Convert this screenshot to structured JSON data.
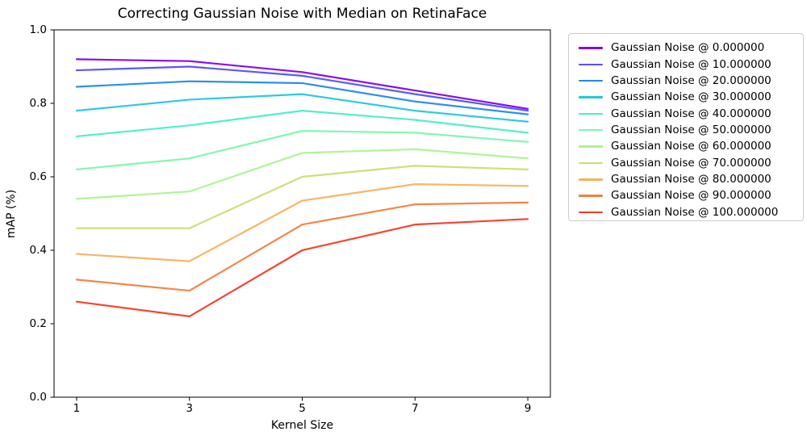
{
  "page": {
    "background": "#ffffff"
  },
  "chart_data": {
    "type": "line",
    "title": "Correcting Gaussian Noise with Median on RetinaFace",
    "xlabel": "Kernel Size",
    "ylabel": "mAP (%)",
    "x": [
      1,
      3,
      5,
      7,
      9
    ],
    "x_tick_labels": [
      "1",
      "3",
      "5",
      "7",
      "9"
    ],
    "y_ticks": [
      0.0,
      0.2,
      0.4,
      0.6,
      0.8,
      1.0
    ],
    "y_tick_labels": [
      "0.0",
      "0.2",
      "0.4",
      "0.6",
      "0.8",
      "1.0"
    ],
    "xlim": [
      0.6,
      9.4
    ],
    "ylim": [
      0,
      1
    ],
    "grid": false,
    "legend_position": "outside-right",
    "axis_color": "#000000",
    "series": [
      {
        "name": "Gaussian Noise @ 0.000000",
        "color": "#8000f8",
        "values": [
          0.92,
          0.915,
          0.885,
          0.835,
          0.785
        ]
      },
      {
        "name": "Gaussian Noise @ 10.000000",
        "color": "#5150fa",
        "values": [
          0.89,
          0.9,
          0.875,
          0.825,
          0.78
        ]
      },
      {
        "name": "Gaussian Noise @ 20.000000",
        "color": "#2089ee",
        "values": [
          0.845,
          0.86,
          0.855,
          0.805,
          0.77
        ]
      },
      {
        "name": "Gaussian Noise @ 30.000000",
        "color": "#22c8e0",
        "values": [
          0.78,
          0.81,
          0.825,
          0.78,
          0.75
        ]
      },
      {
        "name": "Gaussian Noise @ 40.000000",
        "color": "#49eec9",
        "values": [
          0.71,
          0.74,
          0.78,
          0.755,
          0.72
        ]
      },
      {
        "name": "Gaussian Noise @ 50.000000",
        "color": "#7cf7ae",
        "values": [
          0.62,
          0.65,
          0.725,
          0.72,
          0.695
        ]
      },
      {
        "name": "Gaussian Noise @ 60.000000",
        "color": "#aef293",
        "values": [
          0.54,
          0.56,
          0.665,
          0.675,
          0.65
        ]
      },
      {
        "name": "Gaussian Noise @ 70.000000",
        "color": "#cfdc72",
        "values": [
          0.46,
          0.46,
          0.6,
          0.63,
          0.62
        ]
      },
      {
        "name": "Gaussian Noise @ 80.000000",
        "color": "#f7b25c",
        "values": [
          0.39,
          0.37,
          0.535,
          0.58,
          0.575
        ]
      },
      {
        "name": "Gaussian Noise @ 90.000000",
        "color": "#f57d3f",
        "values": [
          0.32,
          0.29,
          0.47,
          0.525,
          0.53
        ]
      },
      {
        "name": "Gaussian Noise @ 100.000000",
        "color": "#f53b28",
        "values": [
          0.26,
          0.22,
          0.4,
          0.47,
          0.485
        ]
      }
    ]
  }
}
